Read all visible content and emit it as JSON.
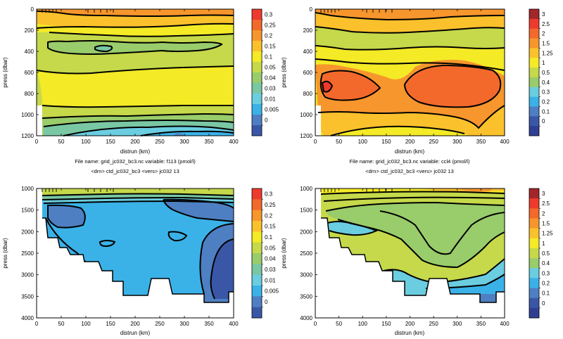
{
  "colors": {
    "background": "#ffffff",
    "contour_line": "#000000",
    "land_mask": "#ffffff"
  },
  "chart_data": [
    {
      "type": "contour",
      "position": "top-left",
      "xlabel": "distrun  (km)",
      "ylabel": "press  (dbar)",
      "xlim": [
        0,
        400
      ],
      "ylim": [
        1200,
        0
      ],
      "xticks": [
        "0",
        "50",
        "100",
        "150",
        "200",
        "250",
        "300",
        "350",
        "400"
      ],
      "yticks": [
        "0",
        "200",
        "400",
        "600",
        "800",
        "1000",
        "1200"
      ],
      "info_line1": "File name:  grid_jc032_bc3.nc       variable: f113 (pmol/l)",
      "info_line2": "<drn>  ctd_jc032_bc3  <vers>  jc032    13",
      "colorbar": {
        "levels": [
          "0.3",
          "0.25",
          "0.2",
          "0.15",
          "0.1",
          "0.05",
          "0.04",
          "0.03",
          "0.01",
          "0.005",
          "0"
        ],
        "colors": [
          "#ee3a2d",
          "#f3692b",
          "#f7962c",
          "#fbc12c",
          "#f4ea26",
          "#c5d94a",
          "#99cc6a",
          "#79c8a3",
          "#6acde0",
          "#3ab2e8",
          "#4e7fc2",
          "#3a57a7"
        ]
      }
    },
    {
      "type": "contour",
      "position": "top-right",
      "xlabel": "distrun  (km)",
      "ylabel": "press  (dbar)",
      "xlim": [
        0,
        400
      ],
      "ylim": [
        1200,
        0
      ],
      "xticks": [
        "0",
        "50",
        "100",
        "150",
        "200",
        "250",
        "300",
        "350",
        "400"
      ],
      "yticks": [
        "0",
        "200",
        "400",
        "600",
        "800",
        "1000",
        "1200"
      ],
      "info_line1": "File name:  grid_jc032_bc3.nc       variable: ccl4 (pmol/l)",
      "info_line2": "<drn>  ctd_jc032_bc3  <vers>  jc032    13",
      "colorbar": {
        "levels": [
          "3",
          "2.5",
          "2",
          "1.5",
          "1.25",
          "1",
          "0.5",
          "0.4",
          "0.3",
          "0.2",
          "0.1",
          "0"
        ],
        "colors": [
          "#a2262a",
          "#ee3a2d",
          "#f3692b",
          "#f7962c",
          "#fbc12c",
          "#f4ea26",
          "#c5d94a",
          "#99cc6a",
          "#6acde0",
          "#3ab2e8",
          "#4e7fc2",
          "#3a57a7",
          "#2e3f93"
        ]
      }
    },
    {
      "type": "contour",
      "position": "bottom-left",
      "xlabel": "distrun  (km)",
      "ylabel": "press  (dbar)",
      "xlim": [
        0,
        400
      ],
      "ylim": [
        4000,
        1000
      ],
      "xticks": [
        "0",
        "50",
        "100",
        "150",
        "200",
        "250",
        "300",
        "350",
        "400"
      ],
      "yticks": [
        "1000",
        "1500",
        "2000",
        "2500",
        "3000",
        "3500",
        "4000"
      ],
      "colorbar": {
        "levels": [
          "0.3",
          "0.25",
          "0.2",
          "0.15",
          "0.1",
          "0.05",
          "0.04",
          "0.03",
          "0.01",
          "0.005",
          "0"
        ],
        "colors": [
          "#ee3a2d",
          "#f3692b",
          "#f7962c",
          "#fbc12c",
          "#f4ea26",
          "#c5d94a",
          "#99cc6a",
          "#79c8a3",
          "#6acde0",
          "#3ab2e8",
          "#4e7fc2",
          "#3a57a7"
        ]
      }
    },
    {
      "type": "contour",
      "position": "bottom-right",
      "xlabel": "distrun  (km)",
      "ylabel": "press  (dbar)",
      "xlim": [
        0,
        400
      ],
      "ylim": [
        4000,
        1000
      ],
      "xticks": [
        "0",
        "50",
        "100",
        "150",
        "200",
        "250",
        "300",
        "350",
        "400"
      ],
      "yticks": [
        "1000",
        "1500",
        "2000",
        "2500",
        "3000",
        "3500",
        "4000"
      ],
      "colorbar": {
        "levels": [
          "3",
          "2.5",
          "2",
          "1.5",
          "1.25",
          "1",
          "0.5",
          "0.4",
          "0.3",
          "0.2",
          "0.1",
          "0"
        ],
        "colors": [
          "#a2262a",
          "#ee3a2d",
          "#f3692b",
          "#f7962c",
          "#fbc12c",
          "#f4ea26",
          "#c5d94a",
          "#99cc6a",
          "#6acde0",
          "#3ab2e8",
          "#4e7fc2",
          "#3a57a7",
          "#2e3f93"
        ]
      }
    }
  ]
}
